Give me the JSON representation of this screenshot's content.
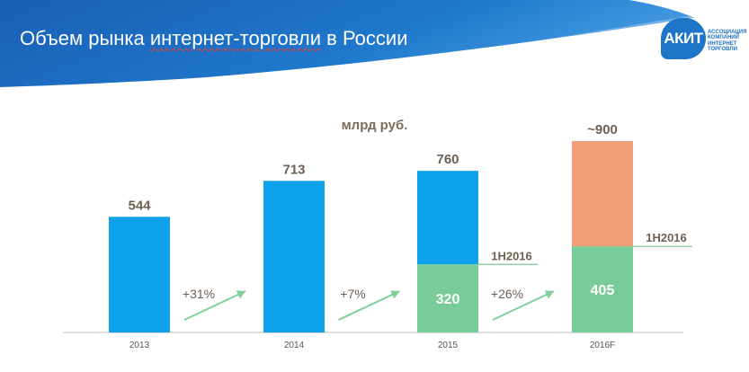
{
  "title": {
    "prefix": "Объем рынка ",
    "underlined": "интернет-торговли",
    "suffix": " в России"
  },
  "logo": {
    "badge": "АКИТ",
    "lines": [
      "АССОЦИАЦИЯ",
      "КОМПАНИЙ",
      "ИНТЕРНЕТ",
      "ТОРГОВЛИ"
    ]
  },
  "colors": {
    "blue": "#0ea2ea",
    "green": "#79cc97",
    "orange": "#ef9e78",
    "value_text": "#6d6055",
    "growth_text": "#6d6055",
    "arrow": "#7fcf99",
    "header_dark": "#1457a8",
    "header_light": "#2b86d4"
  },
  "chart_data": {
    "type": "bar",
    "title": "",
    "ylabel": "млрд руб.",
    "xlabel": "",
    "categories": [
      "2013",
      "2014",
      "2015",
      "2016F"
    ],
    "series": [
      {
        "values": [
          544,
          713,
          760,
          900
        ]
      },
      {
        "name": "1H2016",
        "values": [
          null,
          null,
          320,
          405
        ]
      }
    ],
    "value_labels": [
      "544",
      "713",
      "760",
      "~900"
    ],
    "half_year_labels": [
      null,
      null,
      "320",
      "405"
    ],
    "half_year_marker_label": "1H2016",
    "growth_labels": [
      "+31%",
      "+7%",
      "+26%"
    ],
    "ylim": [
      0,
      1000
    ],
    "grid": false,
    "legend": "none"
  }
}
